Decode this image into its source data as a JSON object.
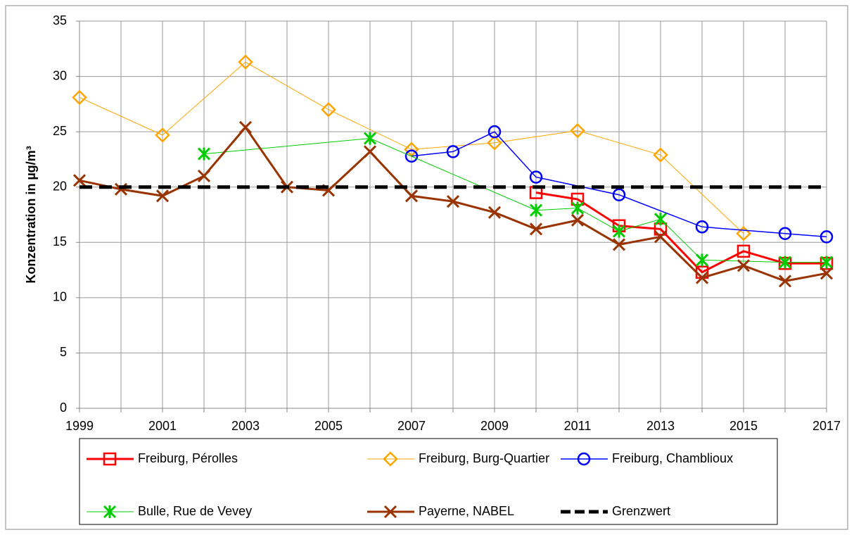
{
  "chart_data": {
    "type": "line",
    "ylabel": "Konzentration in µg/m³",
    "xlim": [
      1999,
      2017
    ],
    "xticks": [
      1999,
      2001,
      2003,
      2005,
      2007,
      2009,
      2011,
      2013,
      2015,
      2017
    ],
    "minor_xticks": [
      2000,
      2002,
      2004,
      2006,
      2008,
      2010,
      2012,
      2014,
      2016
    ],
    "ylim": [
      0,
      35
    ],
    "yticks": [
      0,
      5,
      10,
      15,
      20,
      25,
      30,
      35
    ],
    "grid": true,
    "legend": "bottom",
    "series": [
      {
        "name": "Freiburg, Pérolles",
        "color": "#ff0000",
        "marker": "square",
        "line_width": 3,
        "x": [
          2010,
          2011,
          2012,
          2013,
          2014,
          2015,
          2016,
          2017
        ],
        "values": [
          19.5,
          18.9,
          16.5,
          16.2,
          12.3,
          14.2,
          13.1,
          13.1
        ]
      },
      {
        "name": "Freiburg, Burg-Quartier",
        "color": "#ffa500",
        "marker": "diamond",
        "line_width": 1,
        "x": [
          1999,
          2001,
          2003,
          2005,
          2007,
          2009,
          2011,
          2013,
          2015
        ],
        "values": [
          28.1,
          24.7,
          31.3,
          27.0,
          23.4,
          24.0,
          25.1,
          22.9,
          15.8
        ]
      },
      {
        "name": "Freiburg, Chamblioux",
        "color": "#0000ff",
        "marker": "circle",
        "line_width": 1.5,
        "x": [
          2007,
          2008,
          2009,
          2010,
          2012,
          2014,
          2016,
          2017
        ],
        "values": [
          22.8,
          23.2,
          25.0,
          20.9,
          19.3,
          16.4,
          15.8,
          15.5
        ]
      },
      {
        "name": "Bulle, Rue de Vevey",
        "color": "#00cc00",
        "marker": "star",
        "line_width": 1,
        "x": [
          2002,
          2006,
          2010,
          2011,
          2012,
          2013,
          2014,
          2016,
          2017
        ],
        "values": [
          23.0,
          24.4,
          17.9,
          18.1,
          16.0,
          17.1,
          13.4,
          13.2,
          13.2
        ]
      },
      {
        "name": "Payerne, NABEL",
        "color": "#993300",
        "marker": "x",
        "line_width": 3,
        "x": [
          1999,
          2000,
          2001,
          2002,
          2003,
          2004,
          2005,
          2006,
          2007,
          2008,
          2009,
          2010,
          2011,
          2012,
          2013,
          2014,
          2015,
          2016,
          2017
        ],
        "values": [
          20.6,
          19.8,
          19.2,
          21.0,
          25.4,
          20.0,
          19.7,
          23.2,
          19.2,
          18.7,
          17.7,
          16.2,
          17.0,
          14.8,
          15.5,
          11.8,
          12.9,
          11.5,
          12.2
        ]
      },
      {
        "name": "Grenzwert",
        "color": "#000000",
        "marker": "none",
        "line_width": 5,
        "dash": true,
        "x": [
          1999,
          2017
        ],
        "values": [
          20,
          20
        ]
      }
    ]
  }
}
